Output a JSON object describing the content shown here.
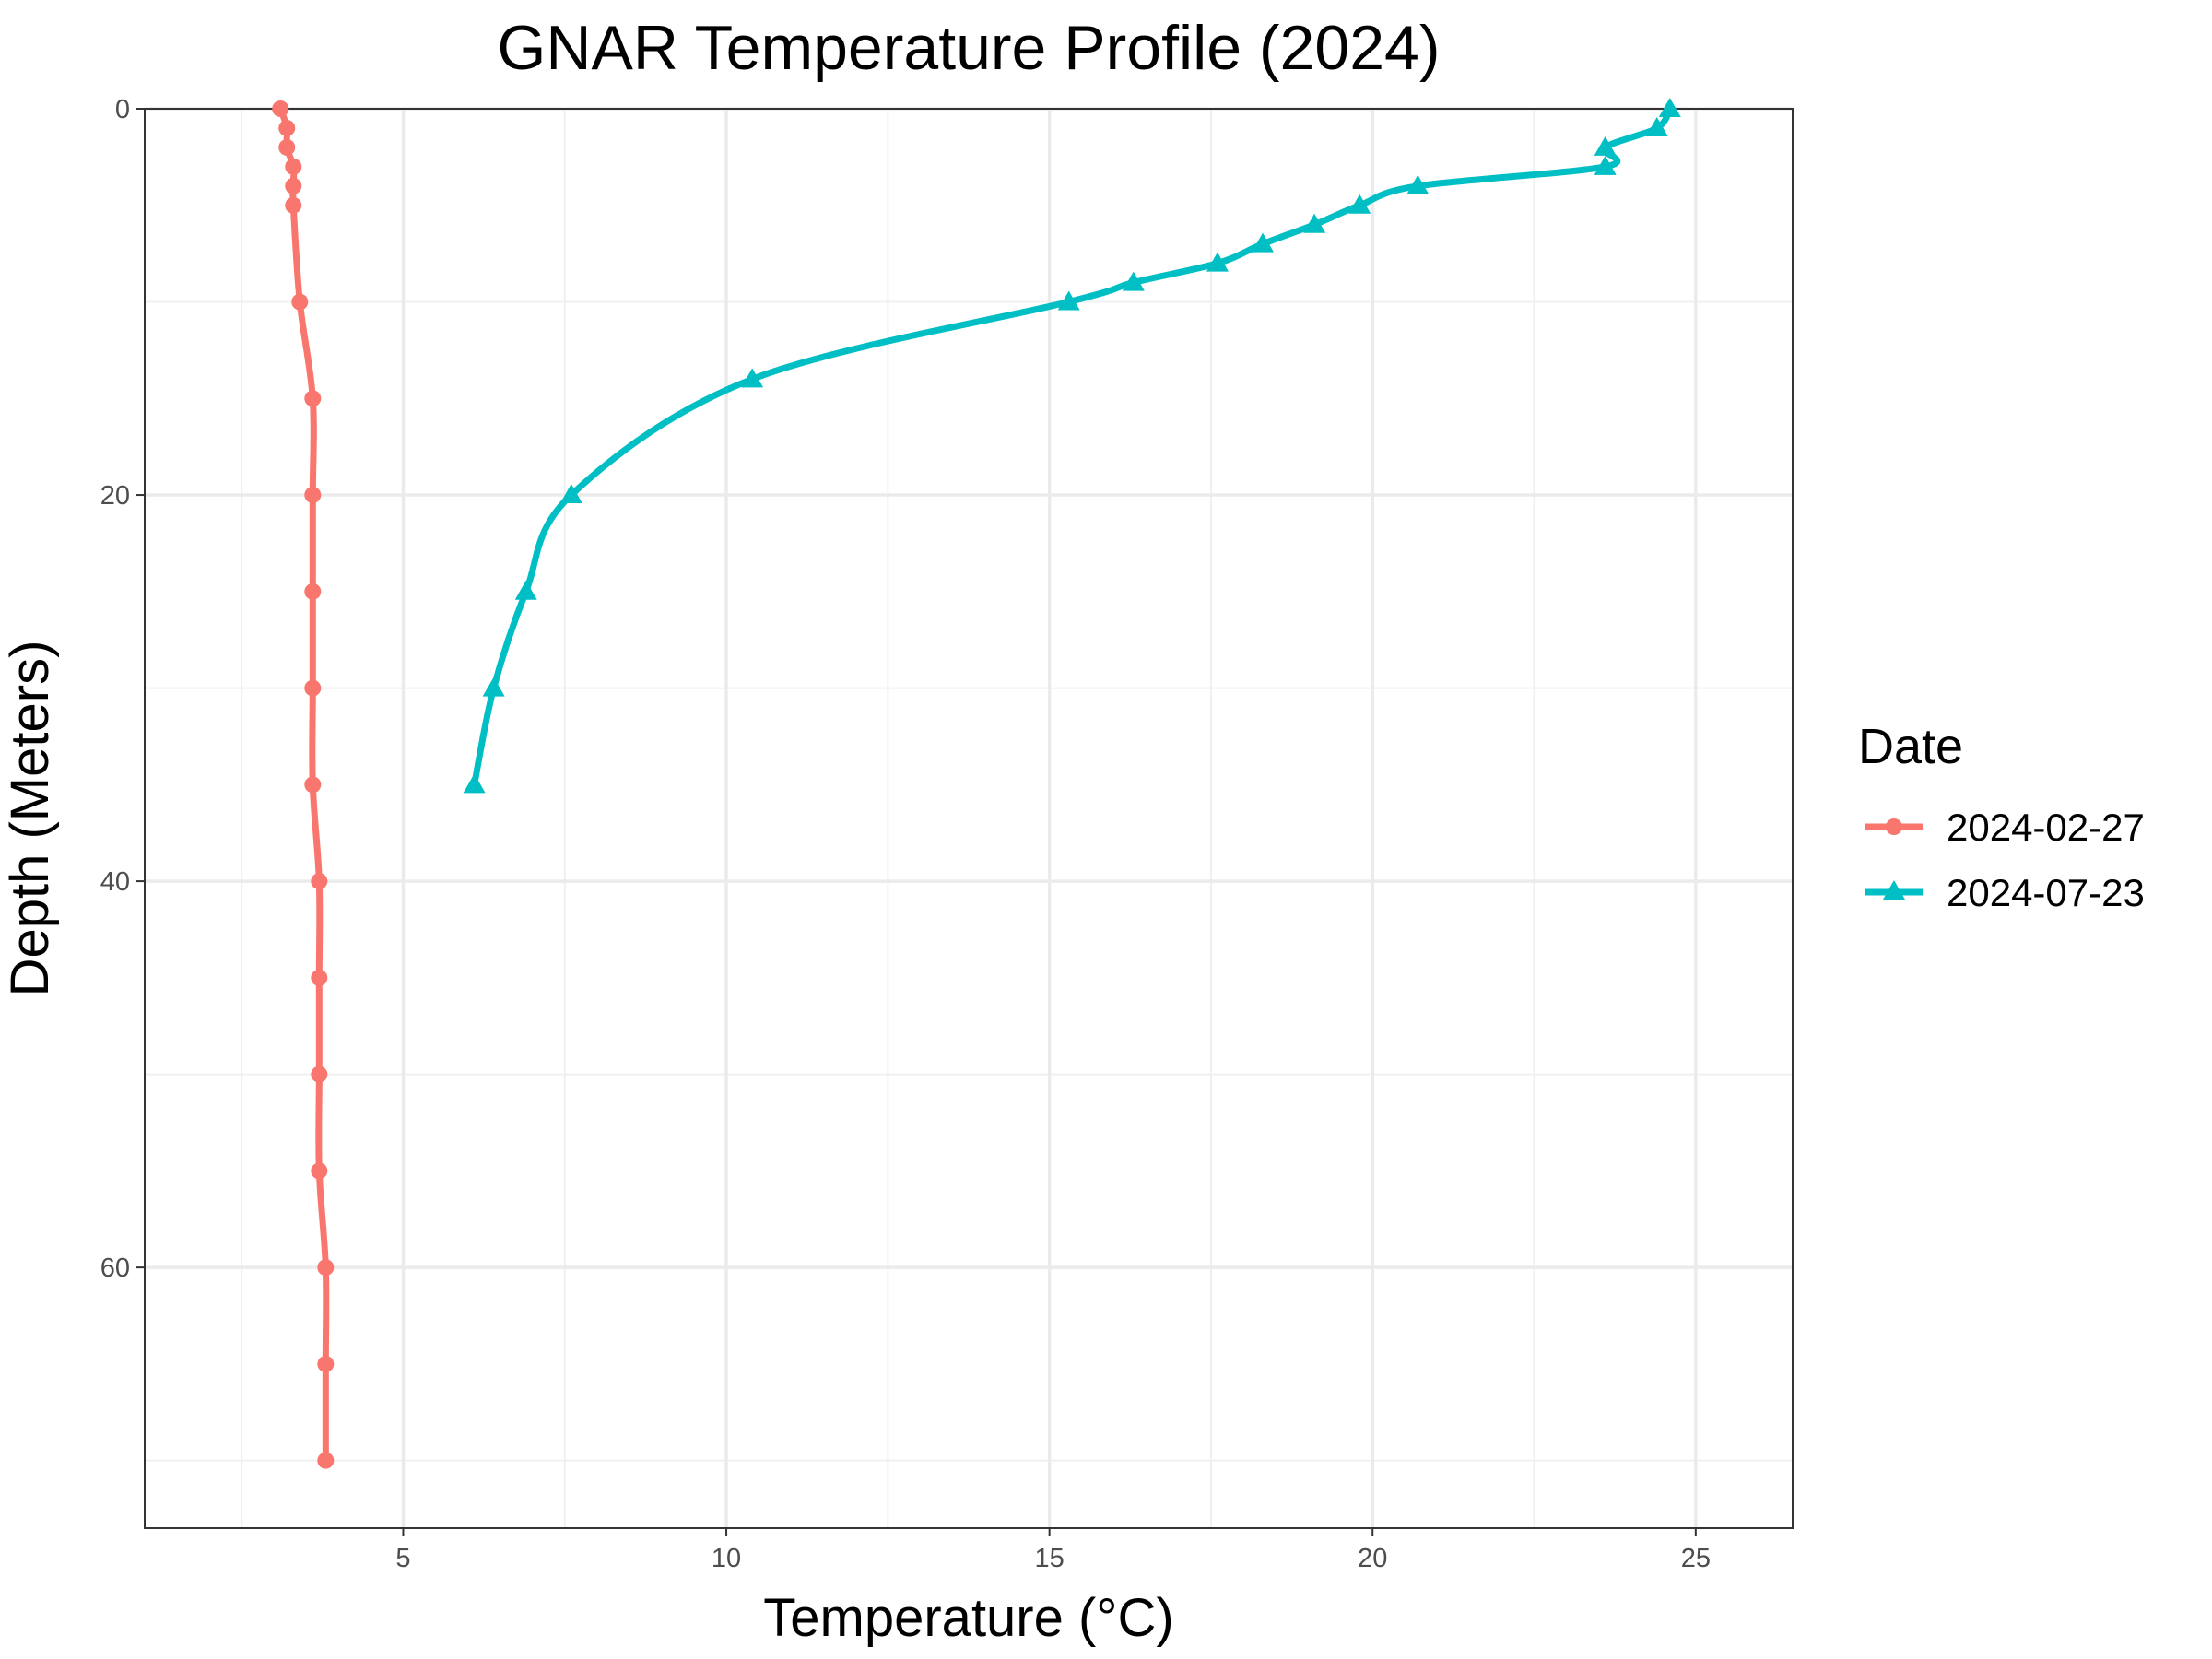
{
  "chart_data": {
    "type": "line",
    "title": "GNAR Temperature Profile (2024)",
    "xlabel": "Temperature (°C)",
    "ylabel": "Depth (Meters)",
    "xlim": [
      1.0,
      26.5
    ],
    "ylim": [
      0,
      73.5
    ],
    "y_reversed": true,
    "x_ticks": [
      5,
      10,
      15,
      20,
      25
    ],
    "y_ticks": [
      0,
      20,
      40,
      60
    ],
    "grid": true,
    "legend": {
      "title": "Date",
      "position": "right"
    },
    "series": [
      {
        "name": "2024-02-27",
        "color": "#F8766D",
        "marker": "circle",
        "points": [
          [
            3.1,
            0
          ],
          [
            3.2,
            1
          ],
          [
            3.2,
            2
          ],
          [
            3.3,
            3
          ],
          [
            3.3,
            4
          ],
          [
            3.3,
            5
          ],
          [
            3.4,
            10
          ],
          [
            3.6,
            15
          ],
          [
            3.6,
            20
          ],
          [
            3.6,
            25
          ],
          [
            3.6,
            30
          ],
          [
            3.6,
            35
          ],
          [
            3.7,
            40
          ],
          [
            3.7,
            45
          ],
          [
            3.7,
            50
          ],
          [
            3.7,
            55
          ],
          [
            3.8,
            60
          ],
          [
            3.8,
            65
          ],
          [
            3.8,
            70
          ]
        ]
      },
      {
        "name": "2024-07-23",
        "color": "#00BFC4",
        "marker": "triangle",
        "points": [
          [
            24.6,
            0
          ],
          [
            24.4,
            1
          ],
          [
            23.6,
            2
          ],
          [
            23.6,
            3
          ],
          [
            20.7,
            4
          ],
          [
            19.8,
            5
          ],
          [
            19.1,
            6
          ],
          [
            18.3,
            7
          ],
          [
            17.6,
            8
          ],
          [
            16.3,
            9
          ],
          [
            15.3,
            10
          ],
          [
            10.4,
            14
          ],
          [
            7.6,
            20
          ],
          [
            6.9,
            25
          ],
          [
            6.4,
            30
          ],
          [
            6.1,
            35
          ]
        ]
      }
    ]
  }
}
